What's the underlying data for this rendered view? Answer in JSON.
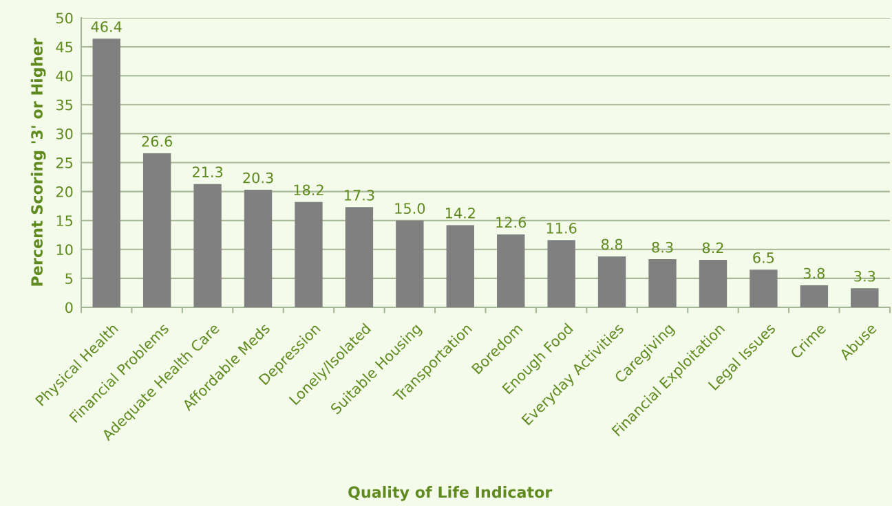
{
  "chart_data": {
    "type": "bar",
    "categories": [
      "Physical Health",
      "Financial Problems",
      "Adequate Health Care",
      "Affordable Meds",
      "Depression",
      "Lonely/Isolated",
      "Suitable Housing",
      "Transportation",
      "Boredom",
      "Enough Food",
      "Everyday Activities",
      "Caregiving",
      "Financial Exploitation",
      "Legal Issues",
      "Crime",
      "Abuse"
    ],
    "values": [
      46.4,
      26.6,
      21.3,
      20.3,
      18.2,
      17.3,
      15.0,
      14.2,
      12.6,
      11.6,
      8.8,
      8.3,
      8.2,
      6.5,
      3.8,
      3.3
    ],
    "value_labels": [
      "46.4",
      "26.6",
      "21.3",
      "20.3",
      "18.2",
      "17.3",
      "15.0",
      "14.2",
      "12.6",
      "11.6",
      "8.8",
      "8.3",
      "8.2",
      "6.5",
      "3.8",
      "3.3"
    ],
    "color": "#808080",
    "xlabel": "Quality of Life Indicator",
    "ylabel": "Percent Scoring '3' or Higher",
    "ylim": [
      0,
      50
    ],
    "yticks": [
      0,
      5,
      10,
      15,
      20,
      25,
      30,
      35,
      40,
      45,
      50
    ],
    "grid": "y",
    "legend": false
  }
}
